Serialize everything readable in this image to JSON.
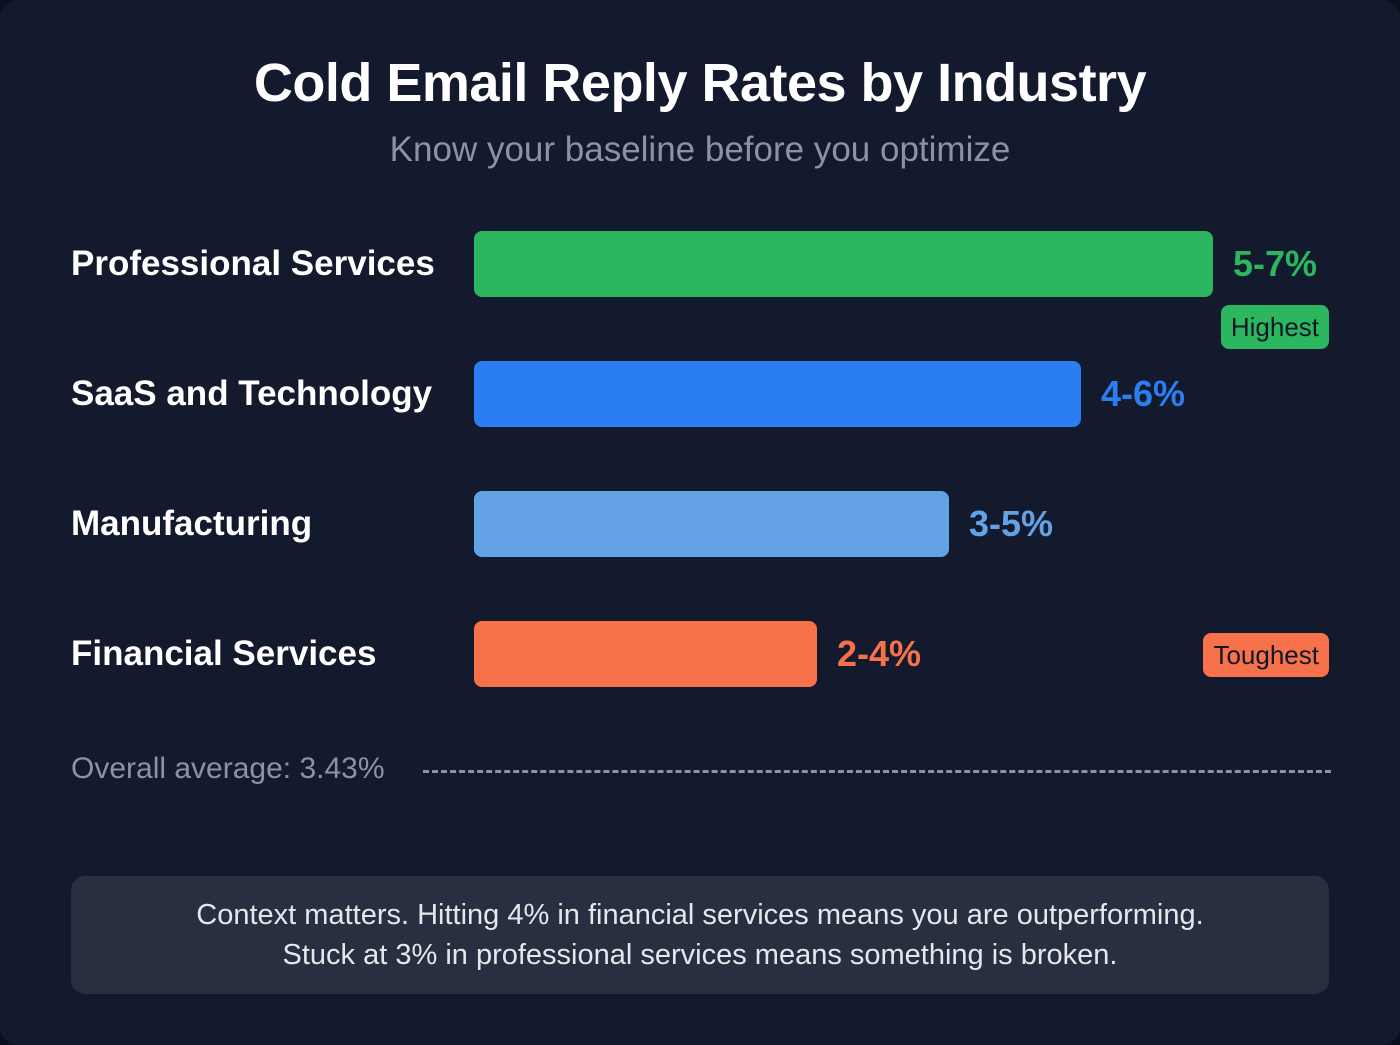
{
  "chart_data": {
    "type": "bar",
    "orientation": "horizontal",
    "title": "Cold Email Reply Rates by Industry",
    "subtitle": "Know your baseline before you optimize",
    "categories": [
      "Professional Services",
      "SaaS and Technology",
      "Manufacturing",
      "Financial Services"
    ],
    "ranges": [
      [
        5,
        7
      ],
      [
        4,
        6
      ],
      [
        3,
        5
      ],
      [
        2,
        4
      ]
    ],
    "value_labels": [
      "5-7%",
      "4-6%",
      "3-5%",
      "2-4%"
    ],
    "colors": [
      "#2bb65f",
      "#2a7ef1",
      "#64a2e6",
      "#f7714a"
    ],
    "badges": [
      {
        "index": 0,
        "text": "Highest",
        "color": "#2bb65f"
      },
      {
        "index": 3,
        "text": "Toughest",
        "color": "#f7714a"
      }
    ],
    "average": {
      "value": 3.43,
      "label": "Overall average: 3.43%"
    },
    "grid": false,
    "legend": "none"
  },
  "note": {
    "line1": "Context matters. Hitting 4% in financial services means you are outperforming.",
    "line2": "Stuck at 3% in professional services means something is broken."
  }
}
